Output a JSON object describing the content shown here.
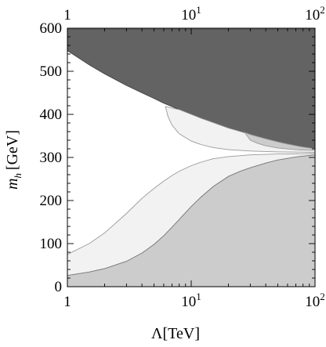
{
  "chart_data": {
    "type": "area",
    "xscale": "log",
    "xlim": [
      1,
      100
    ],
    "ylim": [
      0,
      600
    ],
    "xlabel": "Λ[TeV]",
    "ylabel_base": "m",
    "ylabel_sub": "h",
    "ylabel_unit": "[GeV]",
    "x_ticks_bottom": [
      {
        "value": 1,
        "base": "1",
        "exp": ""
      },
      {
        "value": 10,
        "base": "10",
        "exp": "1"
      },
      {
        "value": 100,
        "base": "10",
        "exp": "2"
      }
    ],
    "x_ticks_top": [
      {
        "value": 1,
        "base": "1",
        "exp": ""
      },
      {
        "value": 10,
        "base": "10",
        "exp": "1"
      },
      {
        "value": 100,
        "base": "10",
        "exp": "2"
      }
    ],
    "y_ticks": [
      0,
      100,
      200,
      300,
      400,
      500,
      600
    ],
    "grid": false,
    "regions": [
      {
        "id": "upper-dark-region",
        "color": "#636363",
        "stroke": "#444444",
        "upper": 598,
        "boundary": [
          [
            1,
            548
          ],
          [
            1.5,
            515
          ],
          [
            2,
            494
          ],
          [
            3,
            467
          ],
          [
            4,
            450
          ],
          [
            5,
            437
          ],
          [
            6,
            426
          ],
          [
            7,
            418
          ],
          [
            8,
            411
          ],
          [
            10,
            400
          ],
          [
            12,
            391
          ],
          [
            15,
            381
          ],
          [
            20,
            368
          ],
          [
            25,
            360
          ],
          [
            30,
            353
          ],
          [
            40,
            343
          ],
          [
            50,
            336
          ],
          [
            60,
            331
          ],
          [
            70,
            327
          ],
          [
            80,
            324
          ],
          [
            100,
            320
          ]
        ]
      },
      {
        "id": "upper-light-band",
        "color": "#f2f2f2",
        "stroke": "#9a9a9a",
        "upper_curve": [
          [
            6.2,
            418
          ],
          [
            8,
            411
          ],
          [
            10,
            400
          ],
          [
            12,
            391
          ],
          [
            15,
            381
          ],
          [
            20,
            368
          ],
          [
            25,
            360
          ],
          [
            30,
            353
          ],
          [
            40,
            343
          ],
          [
            50,
            336
          ],
          [
            60,
            331
          ],
          [
            70,
            327
          ],
          [
            80,
            324
          ],
          [
            100,
            320
          ]
        ],
        "lower_curve": [
          [
            6.2,
            418
          ],
          [
            6.5,
            395
          ],
          [
            7,
            375
          ],
          [
            8,
            355
          ],
          [
            10,
            338
          ],
          [
            12,
            330
          ],
          [
            15,
            323
          ],
          [
            20,
            318
          ],
          [
            30,
            315
          ],
          [
            50,
            313
          ],
          [
            100,
            312
          ]
        ]
      },
      {
        "id": "upper-medium-sliver",
        "color": "#cccccc",
        "stroke": "#9a9a9a",
        "upper_curve": [
          [
            27,
            358
          ],
          [
            30,
            353
          ],
          [
            40,
            343
          ],
          [
            50,
            336
          ],
          [
            60,
            331
          ],
          [
            70,
            327
          ],
          [
            80,
            324
          ],
          [
            100,
            320
          ]
        ],
        "lower_curve": [
          [
            27,
            358
          ],
          [
            30,
            340
          ],
          [
            35,
            332
          ],
          [
            40,
            327
          ],
          [
            50,
            322
          ],
          [
            70,
            318
          ],
          [
            100,
            316
          ]
        ]
      },
      {
        "id": "lower-light-band",
        "color": "#f2f2f2",
        "stroke": "#9a9a9a",
        "upper_curve": [
          [
            1,
            75
          ],
          [
            1.5,
            100
          ],
          [
            2,
            125
          ],
          [
            3,
            170
          ],
          [
            4,
            205
          ],
          [
            5,
            228
          ],
          [
            6,
            245
          ],
          [
            7,
            258
          ],
          [
            8,
            268
          ],
          [
            10,
            281
          ],
          [
            12,
            289
          ],
          [
            15,
            297
          ],
          [
            20,
            302
          ],
          [
            30,
            306
          ],
          [
            50,
            308
          ],
          [
            100,
            309
          ]
        ],
        "lower_curve": [
          [
            1,
            26
          ],
          [
            1.5,
            34
          ],
          [
            2,
            42
          ],
          [
            3,
            59
          ],
          [
            4,
            78
          ],
          [
            5,
            98
          ],
          [
            6,
            118
          ],
          [
            7,
            138
          ],
          [
            8,
            156
          ],
          [
            10,
            186
          ],
          [
            12,
            208
          ],
          [
            15,
            232
          ],
          [
            20,
            256
          ],
          [
            25,
            268
          ],
          [
            30,
            276
          ],
          [
            40,
            287
          ],
          [
            50,
            294
          ],
          [
            70,
            301
          ],
          [
            100,
            306
          ]
        ]
      },
      {
        "id": "lower-medium-region",
        "color": "#cccccc",
        "stroke": "#7a7a7a",
        "lower": 0,
        "boundary": [
          [
            1,
            26
          ],
          [
            1.5,
            34
          ],
          [
            2,
            42
          ],
          [
            3,
            59
          ],
          [
            4,
            78
          ],
          [
            5,
            98
          ],
          [
            6,
            118
          ],
          [
            7,
            138
          ],
          [
            8,
            156
          ],
          [
            10,
            186
          ],
          [
            12,
            208
          ],
          [
            15,
            232
          ],
          [
            20,
            256
          ],
          [
            25,
            268
          ],
          [
            30,
            276
          ],
          [
            40,
            287
          ],
          [
            50,
            294
          ],
          [
            70,
            301
          ],
          [
            100,
            306
          ]
        ]
      }
    ]
  }
}
